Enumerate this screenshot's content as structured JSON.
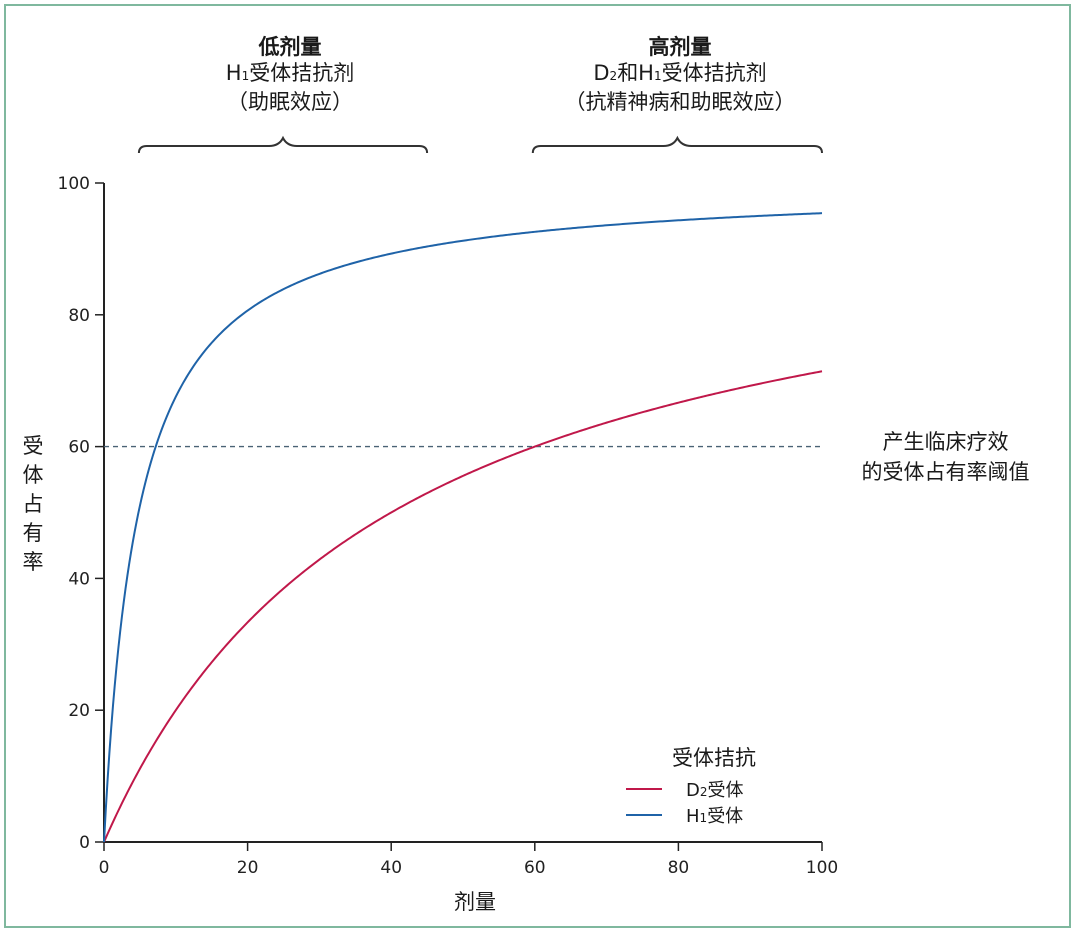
{
  "chart_data": {
    "type": "line",
    "title": "",
    "xlabel": "剂量",
    "ylabel": "受体占有率",
    "xlim": [
      0,
      100
    ],
    "ylim": [
      0,
      100
    ],
    "x_ticks": [
      0,
      20,
      40,
      60,
      80,
      100
    ],
    "y_ticks": [
      0,
      20,
      40,
      60,
      80,
      100
    ],
    "grid": false,
    "legend_position": "lower right",
    "legend_title": "受体拮抗",
    "x": [
      0,
      2,
      5,
      8,
      10,
      15,
      20,
      25,
      30,
      40,
      50,
      60,
      70,
      80,
      90,
      100
    ],
    "series": [
      {
        "name": "D2受体",
        "color": "#c0184a",
        "values": [
          0,
          4.8,
          11.1,
          16.7,
          20.0,
          27.3,
          33.3,
          38.5,
          42.9,
          50.0,
          55.6,
          60.0,
          63.6,
          66.7,
          69.2,
          71.4
        ]
      },
      {
        "name": "H1受体",
        "color": "#1f63a8",
        "values": [
          0,
          29.4,
          51.0,
          62.5,
          67.6,
          75.8,
          80.6,
          83.9,
          86.2,
          89.3,
          91.2,
          92.6,
          93.6,
          94.3,
          94.9,
          95.4
        ]
      }
    ],
    "reference_lines": [
      {
        "type": "horizontal",
        "y": 60,
        "style": "dashed",
        "color": "#4a6275",
        "label": "产生临床疗效的受体占有率阈值"
      }
    ],
    "annotations": [
      {
        "range_x": [
          5,
          45
        ],
        "title": "低剂量",
        "line1": "H1受体拮抗剂",
        "line2": "（助眠效应）"
      },
      {
        "range_x": [
          60,
          100
        ],
        "title": "高剂量",
        "line1": "D2和H1受体拮抗剂",
        "line2": "（抗精神病和助眠效应）"
      }
    ]
  },
  "axes": {
    "x_label": "剂量",
    "y_label_chars": [
      "受",
      "体",
      "占",
      "有",
      "率"
    ],
    "x_ticks": [
      "0",
      "20",
      "40",
      "60",
      "80",
      "100"
    ],
    "y_ticks": [
      "0",
      "20",
      "40",
      "60",
      "80",
      "100"
    ]
  },
  "annotations": {
    "low": {
      "title": "低剂量",
      "line1_pre": "H",
      "line1_sub": "1",
      "line1_post": "受体拮抗剂",
      "line2": "（助眠效应）"
    },
    "high": {
      "title": "高剂量",
      "line1_a": "D",
      "line1_sub_a": "2",
      "line1_b": "和H",
      "line1_sub_b": "1",
      "line1_post": "受体拮抗剂",
      "line2": "（抗精神病和助眠效应）"
    }
  },
  "threshold": {
    "line1": "产生临床疗效",
    "line2": "的受体占有率阈值"
  },
  "legend": {
    "title": "受体拮抗",
    "items": [
      {
        "pre": "D",
        "sub": "2",
        "post": "受体",
        "color": "#c0184a"
      },
      {
        "pre": "H",
        "sub": "1",
        "post": "受体",
        "color": "#1f63a8"
      }
    ]
  },
  "colors": {
    "frame": "#7fb89e",
    "axis": "#222222",
    "d2": "#c0184a",
    "h1": "#1f63a8",
    "threshold": "#4a6275"
  }
}
